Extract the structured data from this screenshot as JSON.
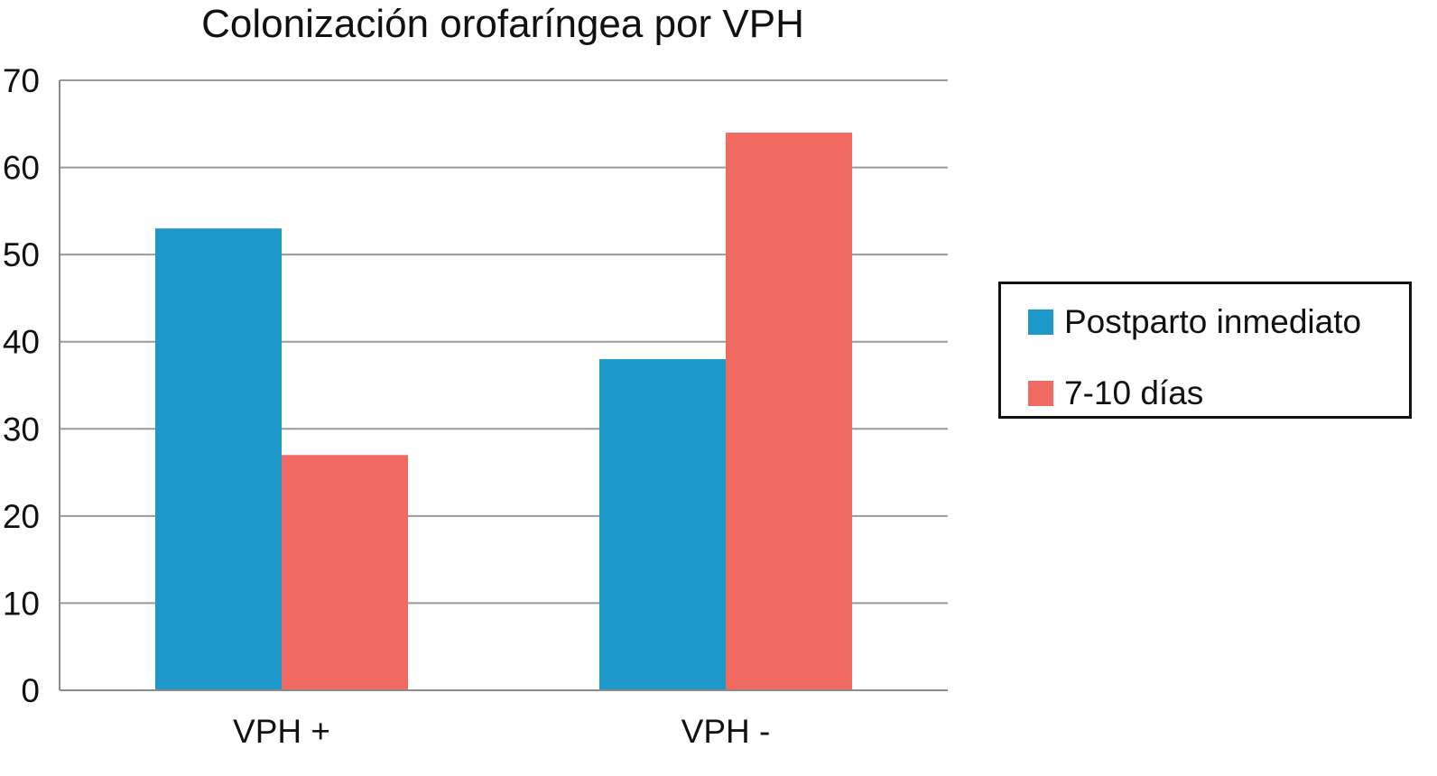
{
  "chart_data": {
    "type": "bar",
    "title": "Colonización orofaríngea por VPH",
    "xlabel": "",
    "ylabel": "",
    "categories": [
      "VPH +",
      "VPH -"
    ],
    "series": [
      {
        "name": "Postparto inmediato",
        "values": [
          53,
          38
        ],
        "color": "#1c98c9"
      },
      {
        "name": "7-10 días",
        "values": [
          27,
          64
        ],
        "color": "#f06a62"
      }
    ],
    "ylim": [
      0,
      70
    ],
    "yticks": [
      0,
      10,
      20,
      30,
      40,
      50,
      60,
      70
    ],
    "grid": true,
    "legend_position": "right"
  }
}
